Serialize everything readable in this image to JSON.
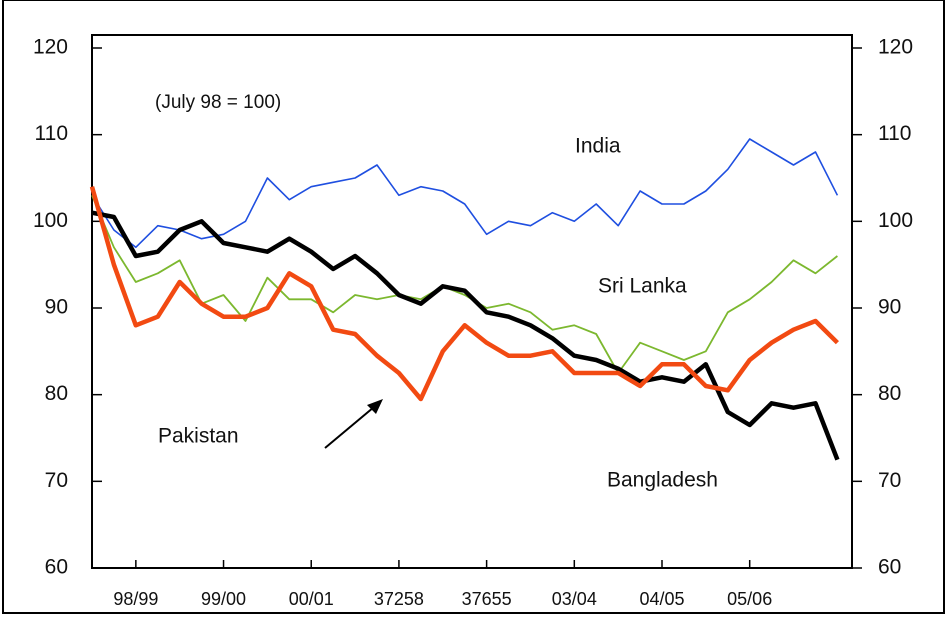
{
  "chart_data": {
    "type": "line",
    "annotation": "(July 98 = 100)",
    "x": [
      0,
      3,
      6,
      9,
      12,
      15,
      18,
      21,
      24,
      27,
      30,
      33,
      36,
      39,
      42,
      45,
      48,
      51,
      54,
      57,
      60,
      63,
      66,
      69,
      72,
      75,
      78,
      81,
      84,
      87,
      90,
      93,
      96,
      99,
      102
    ],
    "xlim": [
      0,
      104
    ],
    "xticks": [
      {
        "value": 6,
        "label": "98/99"
      },
      {
        "value": 18,
        "label": "99/00"
      },
      {
        "value": 30,
        "label": "00/01"
      },
      {
        "value": 42,
        "label": "37258"
      },
      {
        "value": 54,
        "label": "37655"
      },
      {
        "value": 66,
        "label": "03/04"
      },
      {
        "value": 78,
        "label": "04/05"
      },
      {
        "value": 90,
        "label": "05/06"
      }
    ],
    "ylim": [
      60,
      120
    ],
    "yticks": [
      60,
      70,
      80,
      90,
      100,
      110,
      120
    ],
    "y2lim": [
      60,
      120
    ],
    "y2ticks": [
      60,
      70,
      80,
      90,
      100,
      110,
      120
    ],
    "series": [
      {
        "name": "India",
        "color": "#1f4fe0",
        "width": 1.6,
        "values": [
          103,
          99,
          97,
          99.5,
          99,
          98,
          98.5,
          100,
          105,
          102.5,
          104,
          104.5,
          105,
          106.5,
          103,
          104,
          103.5,
          102,
          98.5,
          100,
          99.5,
          101,
          100,
          102,
          99.5,
          103.5,
          102,
          102,
          103.5,
          106,
          109.5,
          108,
          106.5,
          108,
          103
        ]
      },
      {
        "name": "Sri Lanka",
        "color": "#7cb82f",
        "width": 1.8,
        "values": [
          103,
          97,
          93,
          94,
          95.5,
          90.5,
          91.5,
          88.5,
          93.5,
          91,
          91,
          89.5,
          91.5,
          91,
          91.5,
          91,
          92.5,
          91.5,
          90,
          90.5,
          89.5,
          87.5,
          88,
          87,
          82.5,
          86,
          85,
          84,
          85,
          89.5,
          91,
          93,
          95.5,
          94,
          96
        ]
      },
      {
        "name": "Bangladesh",
        "color": "#000000",
        "width": 4.5,
        "values": [
          101,
          100.5,
          96,
          96.5,
          99,
          100,
          97.5,
          97,
          96.5,
          98,
          96.5,
          94.5,
          96,
          94,
          91.5,
          90.5,
          92.5,
          92,
          89.5,
          89,
          88,
          86.5,
          84.5,
          84,
          83,
          81.5,
          82,
          81.5,
          83.5,
          78,
          76.5,
          79,
          78.5,
          79,
          72.5
        ]
      },
      {
        "name": "Pakistan",
        "color": "#f24a12",
        "width": 4.5,
        "values": [
          104,
          95,
          88,
          89,
          93,
          90.5,
          89,
          89,
          90,
          94,
          92.5,
          87.5,
          87,
          84.5,
          82.5,
          79.5,
          85,
          88,
          86,
          84.5,
          84.5,
          85,
          82.5,
          82.5,
          82.5,
          81,
          83.5,
          83.5,
          81,
          80.5,
          84,
          86,
          87.5,
          88.5,
          86
        ]
      }
    ]
  }
}
